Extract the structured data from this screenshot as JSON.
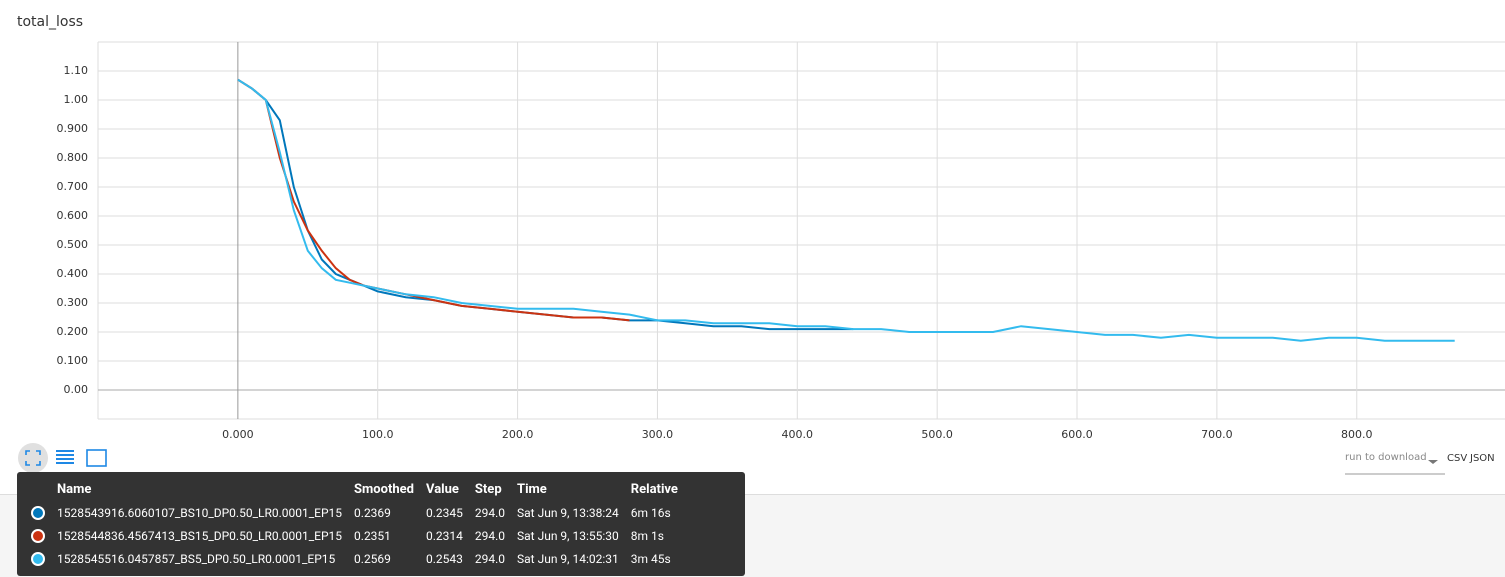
{
  "chart_data": {
    "type": "line",
    "title": "total_loss",
    "x": [
      0,
      10,
      20,
      30,
      40,
      50,
      60,
      70,
      80,
      90,
      100,
      120,
      140,
      160,
      180,
      200,
      220,
      240,
      260,
      280,
      300,
      320,
      340,
      360,
      380,
      400,
      420,
      440,
      460,
      480,
      500,
      520,
      540,
      560,
      580,
      600,
      620,
      640,
      660,
      680,
      700,
      720,
      740,
      760,
      780,
      800,
      820,
      840,
      860,
      870
    ],
    "series": [
      {
        "name": "1528543916.6060107_BS10_DP0.50_LR0.0001_EP15",
        "color": "#0077bb",
        "values": [
          1.07,
          1.04,
          1.0,
          0.93,
          0.7,
          0.55,
          0.45,
          0.4,
          0.38,
          0.36,
          0.34,
          0.32,
          0.31,
          0.29,
          0.28,
          0.27,
          0.26,
          0.25,
          0.25,
          0.24,
          0.24,
          0.23,
          0.22,
          0.22,
          0.21,
          0.21,
          0.21,
          0.21,
          null,
          null,
          null,
          null,
          null,
          null,
          null,
          null,
          null,
          null,
          null,
          null,
          null,
          null,
          null,
          null,
          null,
          null,
          null,
          null,
          null,
          null
        ]
      },
      {
        "name": "1528544836.4567413_BS15_DP0.50_LR0.0001_EP15",
        "color": "#cc3311",
        "values": [
          1.07,
          1.04,
          1.0,
          0.8,
          0.65,
          0.55,
          0.48,
          0.42,
          0.38,
          0.36,
          0.35,
          0.33,
          0.31,
          0.29,
          0.28,
          0.27,
          0.26,
          0.25,
          0.25,
          0.24,
          null,
          null,
          null,
          null,
          null,
          null,
          null,
          null,
          null,
          null,
          null,
          null,
          null,
          null,
          null,
          null,
          null,
          null,
          null,
          null,
          null,
          null,
          null,
          null,
          null,
          null,
          null,
          null,
          null,
          null
        ]
      },
      {
        "name": "1528545516.0457857_BS5_DP0.50_LR0.0001_EP15",
        "color": "#33bbee",
        "values": [
          1.07,
          1.04,
          1.0,
          0.82,
          0.62,
          0.48,
          0.42,
          0.38,
          0.37,
          0.36,
          0.35,
          0.33,
          0.32,
          0.3,
          0.29,
          0.28,
          0.28,
          0.28,
          0.27,
          0.26,
          0.24,
          0.24,
          0.23,
          0.23,
          0.23,
          0.22,
          0.22,
          0.21,
          0.21,
          0.2,
          0.2,
          0.2,
          0.2,
          0.22,
          0.21,
          0.2,
          0.19,
          0.19,
          0.18,
          0.19,
          0.18,
          0.18,
          0.18,
          0.17,
          0.18,
          0.18,
          0.17,
          0.17,
          0.17,
          0.17
        ]
      }
    ],
    "xlim": [
      -100,
      906
    ],
    "ylim": [
      -0.1,
      1.2
    ],
    "xticks": [
      {
        "value": 0,
        "label": "0.000"
      },
      {
        "value": 100,
        "label": "100.0"
      },
      {
        "value": 200,
        "label": "200.0"
      },
      {
        "value": 300,
        "label": "300.0"
      },
      {
        "value": 400,
        "label": "400.0"
      },
      {
        "value": 500,
        "label": "500.0"
      },
      {
        "value": 600,
        "label": "600.0"
      },
      {
        "value": 700,
        "label": "700.0"
      },
      {
        "value": 800,
        "label": "800.0"
      }
    ],
    "yticks": [
      {
        "value": 0,
        "label": "0.00"
      },
      {
        "value": 0.1,
        "label": "0.100"
      },
      {
        "value": 0.2,
        "label": "0.200"
      },
      {
        "value": 0.3,
        "label": "0.300"
      },
      {
        "value": 0.4,
        "label": "0.400"
      },
      {
        "value": 0.5,
        "label": "0.500"
      },
      {
        "value": 0.6,
        "label": "0.600"
      },
      {
        "value": 0.7,
        "label": "0.700"
      },
      {
        "value": 0.8,
        "label": "0.800"
      },
      {
        "value": 0.9,
        "label": "0.900"
      },
      {
        "value": 1,
        "label": "1.00"
      },
      {
        "value": 1.1,
        "label": "1.10"
      }
    ],
    "grid": true
  },
  "tooltip": {
    "headers": [
      "Name",
      "Smoothed",
      "Value",
      "Step",
      "Time",
      "Relative"
    ],
    "rows": [
      [
        "1528543916.6060107_BS10_DP0.50_LR0.0001_EP15",
        "0.2369",
        "0.2345",
        "294.0",
        "Sat Jun 9, 13:38:24",
        "6m 16s"
      ],
      [
        "1528544836.4567413_BS15_DP0.50_LR0.0001_EP15",
        "0.2351",
        "0.2314",
        "294.0",
        "Sat Jun 9, 13:55:30",
        "8m 1s"
      ],
      [
        "1528545516.0457857_BS5_DP0.50_LR0.0001_EP15",
        "0.2569",
        "0.2543",
        "294.0",
        "Sat Jun 9, 14:02:31",
        "3m 45s"
      ]
    ]
  },
  "download": {
    "select": "run to download",
    "csv": "CSV",
    "json": "JSON"
  }
}
